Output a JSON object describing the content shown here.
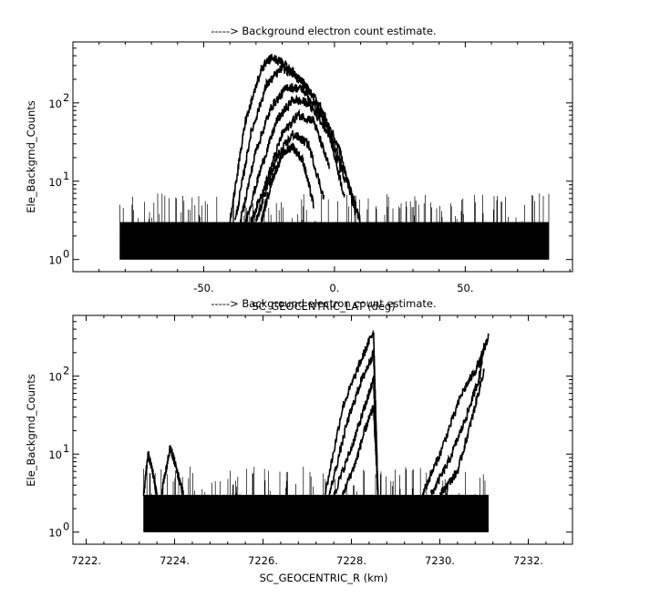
{
  "chart_data": [
    {
      "type": "line",
      "title": "-----> Background electron count estimate.",
      "xlabel": "SC_GEOCENTRIC_LAT (deg)",
      "ylabel": "Ele_Backgrnd_Counts",
      "y_scale": "log",
      "xlim": [
        -100,
        91
      ],
      "ylim": [
        0.7,
        600
      ],
      "x_ticks": [
        {
          "v": -50,
          "label": "-50."
        },
        {
          "v": 0,
          "label": "0."
        },
        {
          "v": 50,
          "label": "50."
        }
      ],
      "y_ticks": [
        {
          "v": 1,
          "base": "10",
          "exp": "0"
        },
        {
          "v": 10,
          "base": "10",
          "exp": "1"
        },
        {
          "v": 100,
          "base": "10",
          "exp": "2"
        }
      ],
      "data_range_x": [
        -82,
        82
      ],
      "background_level": [
        1,
        3
      ],
      "series": [
        {
          "x": [
            -40,
            -34,
            -28,
            -24,
            -18,
            -10,
            -2,
            6,
            10
          ],
          "y": [
            3,
            60,
            270,
            380,
            300,
            150,
            45,
            8,
            3
          ]
        },
        {
          "x": [
            -38,
            -32,
            -26,
            -20,
            -14,
            -6,
            2,
            8
          ],
          "y": [
            3,
            40,
            170,
            280,
            220,
            100,
            25,
            4
          ]
        },
        {
          "x": [
            -36,
            -30,
            -24,
            -18,
            -12,
            -4,
            4
          ],
          "y": [
            3,
            25,
            90,
            160,
            150,
            60,
            10
          ]
        },
        {
          "x": [
            -34,
            -28,
            -22,
            -16,
            -10,
            -2,
            4
          ],
          "y": [
            3,
            15,
            60,
            110,
            100,
            40,
            6
          ]
        },
        {
          "x": [
            -32,
            -26,
            -20,
            -14,
            -8,
            -2
          ],
          "y": [
            3,
            10,
            40,
            70,
            60,
            15
          ]
        },
        {
          "x": [
            -30,
            -26,
            -22,
            -16,
            -10,
            -4
          ],
          "y": [
            3,
            8,
            20,
            40,
            30,
            6
          ]
        },
        {
          "x": [
            -28,
            -24,
            -20,
            -16,
            -12,
            -8
          ],
          "y": [
            3,
            10,
            22,
            28,
            18,
            5
          ]
        }
      ]
    },
    {
      "type": "line",
      "title": "-----> Background electron count estimate.",
      "xlabel": "SC_GEOCENTRIC_R (km)",
      "ylabel": "Ele_Backgrnd_Counts",
      "y_scale": "log",
      "xlim": [
        7221.7,
        7233
      ],
      "ylim": [
        0.7,
        600
      ],
      "x_ticks": [
        {
          "v": 7222,
          "label": "7222."
        },
        {
          "v": 7224,
          "label": "7224."
        },
        {
          "v": 7226,
          "label": "7226."
        },
        {
          "v": 7228,
          "label": "7228."
        },
        {
          "v": 7230,
          "label": "7230."
        },
        {
          "v": 7232,
          "label": "7232."
        }
      ],
      "y_ticks": [
        {
          "v": 1,
          "base": "10",
          "exp": "0"
        },
        {
          "v": 10,
          "base": "10",
          "exp": "1"
        },
        {
          "v": 100,
          "base": "10",
          "exp": "2"
        }
      ],
      "data_range_x": [
        7223.3,
        7231.1
      ],
      "background_level": [
        1,
        3
      ],
      "series": [
        {
          "x": [
            7227.4,
            7227.8,
            7228.2,
            7228.5,
            7228.6
          ],
          "y": [
            3,
            40,
            150,
            380,
            3
          ]
        },
        {
          "x": [
            7227.5,
            7227.9,
            7228.2,
            7228.5,
            7228.6
          ],
          "y": [
            3,
            25,
            80,
            200,
            3
          ]
        },
        {
          "x": [
            7227.6,
            7228.0,
            7228.3,
            7228.5,
            7228.6
          ],
          "y": [
            3,
            12,
            40,
            90,
            3
          ]
        },
        {
          "x": [
            7227.8,
            7228.1,
            7228.3,
            7228.5,
            7228.6
          ],
          "y": [
            3,
            8,
            20,
            40,
            3
          ]
        },
        {
          "x": [
            7229.6,
            7230.0,
            7230.5,
            7230.9,
            7231.1
          ],
          "y": [
            3,
            10,
            60,
            150,
            330
          ]
        },
        {
          "x": [
            7229.8,
            7230.2,
            7230.6,
            7230.9,
            7231.0
          ],
          "y": [
            3,
            8,
            30,
            100,
            260
          ]
        },
        {
          "x": [
            7230.0,
            7230.4,
            7230.7,
            7231.0
          ],
          "y": [
            3,
            6,
            25,
            120
          ]
        },
        {
          "x": [
            7223.3,
            7223.4,
            7223.5,
            7223.6
          ],
          "y": [
            3,
            10,
            6,
            3
          ]
        },
        {
          "x": [
            7223.7,
            7223.9,
            7224.0,
            7224.2
          ],
          "y": [
            3,
            12,
            8,
            3
          ]
        }
      ]
    }
  ]
}
